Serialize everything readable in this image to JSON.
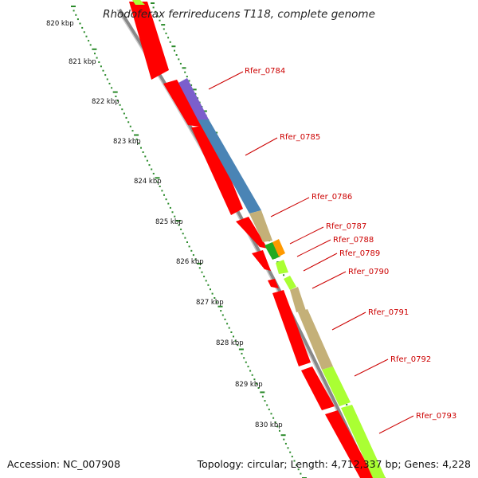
{
  "title": "Rhodoferax ferrireducens T118, complete genome",
  "footer": {
    "accession": "Accession: NC_007908",
    "summary": "Topology: circular; Length: 4,712,337 bp; Genes: 4,228"
  },
  "axis": {
    "ticks": [
      "820 kbp",
      "821 kbp",
      "822 kbp",
      "823 kbp",
      "824 kbp",
      "825 kbp",
      "826 kbp",
      "827 kbp",
      "828 kbp",
      "829 kbp",
      "830 kbp"
    ]
  },
  "genes": [
    {
      "label": "Rfer_0784"
    },
    {
      "label": "Rfer_0785"
    },
    {
      "label": "Rfer_0786"
    },
    {
      "label": "Rfer_0787"
    },
    {
      "label": "Rfer_0788"
    },
    {
      "label": "Rfer_0789"
    },
    {
      "label": "Rfer_0790"
    },
    {
      "label": "Rfer_0791"
    },
    {
      "label": "Rfer_0792"
    },
    {
      "label": "Rfer_0793"
    }
  ],
  "colors": {
    "cds": "#ff0000",
    "backbone": "#888888",
    "ticks": "#2a8a2a",
    "label": "#cc0000"
  }
}
